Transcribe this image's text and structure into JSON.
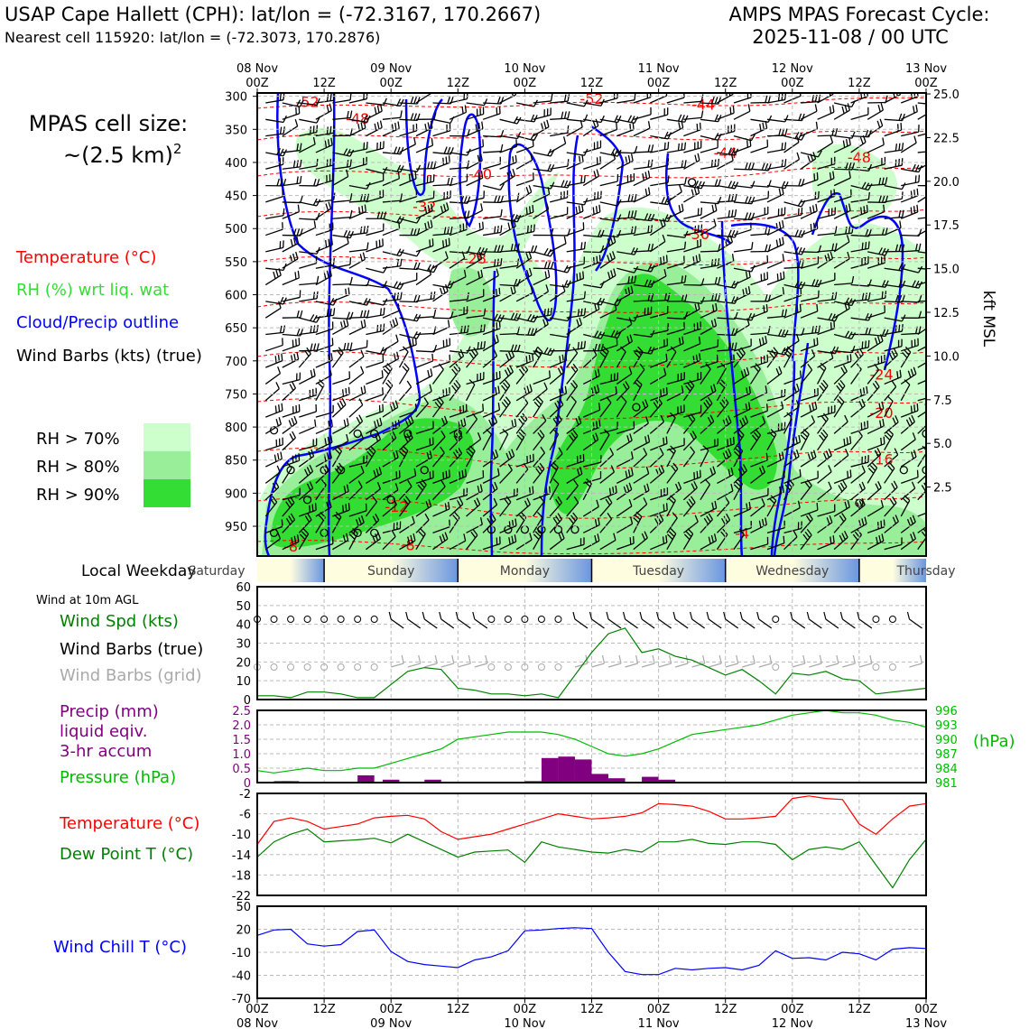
{
  "header": {
    "title_left": "USAP Cape Hallett (CPH): lat/lon = (-72.3167, 170.2667)",
    "subtitle_left": "Nearest cell 115920: lat/lon = (-72.3073, 170.2876)",
    "title_right_1": "AMPS MPAS Forecast Cycle:",
    "title_right_2": "2025-11-08 / 00 UTC"
  },
  "side_labels": {
    "cell_size_1": "MPAS cell size:",
    "cell_size_2": "~(2.5 km)",
    "cell_size_sup": "2",
    "temperature": "Temperature (°C)",
    "rh": "RH (%) wrt liq. wat",
    "cloud": "Cloud/Precip outline",
    "wind": "Wind Barbs (kts) (true)",
    "rh70": "RH > 70%",
    "rh80": "RH > 80%",
    "rh90": "RH > 90%",
    "local_weekday": "Local Weekday",
    "wind10m": "Wind at 10m AGL",
    "wind_spd": "Wind Spd (kts)",
    "barbs_true": "Wind Barbs (true)",
    "barbs_grid": "Wind Barbs (grid)",
    "precip_1": "Precip (mm)",
    "precip_2": "liquid eqiv.",
    "precip_3": "3-hr accum",
    "pressure": "Pressure (hPa)",
    "hpa_unit": "(hPa)",
    "temp2": "Temperature (°C)",
    "dewpoint": "Dew Point T (°C)",
    "windchill": "Wind Chill T (°C)",
    "kft": "kft MSL"
  },
  "colors": {
    "rh70": "#ccffcc",
    "rh80": "#99ee99",
    "rh90": "#33dd33",
    "temperature": "#ff0000",
    "rh_label": "#33dd33",
    "cloud": "#0000ff",
    "pressure": "#00bb00",
    "precip": "#800080",
    "windspd": "#008000",
    "windchill": "#0000ff",
    "dewpoint": "#008000",
    "grid_barb": "#aaaaaa"
  },
  "time_axis": {
    "top_labels": [
      {
        "l1": "08 Nov",
        "l2": "00Z"
      },
      {
        "l1": "",
        "l2": "12Z"
      },
      {
        "l1": "09 Nov",
        "l2": "00Z"
      },
      {
        "l1": "",
        "l2": "12Z"
      },
      {
        "l1": "10 Nov",
        "l2": "00Z"
      },
      {
        "l1": "",
        "l2": "12Z"
      },
      {
        "l1": "11 Nov",
        "l2": "00Z"
      },
      {
        "l1": "",
        "l2": "12Z"
      },
      {
        "l1": "12 Nov",
        "l2": "00Z"
      },
      {
        "l1": "",
        "l2": "12Z"
      },
      {
        "l1": "13 Nov",
        "l2": "00Z"
      }
    ],
    "bottom_labels": [
      {
        "l1": "00Z",
        "l2": "08 Nov"
      },
      {
        "l1": "12Z",
        "l2": ""
      },
      {
        "l1": "00Z",
        "l2": "09 Nov"
      },
      {
        "l1": "12Z",
        "l2": ""
      },
      {
        "l1": "00Z",
        "l2": "10 Nov"
      },
      {
        "l1": "12Z",
        "l2": ""
      },
      {
        "l1": "00Z",
        "l2": "11 Nov"
      },
      {
        "l1": "12Z",
        "l2": ""
      },
      {
        "l1": "00Z",
        "l2": "12 Nov"
      },
      {
        "l1": "12Z",
        "l2": ""
      },
      {
        "l1": "00Z",
        "l2": "13 Nov"
      }
    ],
    "weekdays": [
      "Saturday",
      "Sunday",
      "Monday",
      "Tuesday",
      "Wednesday",
      "Thursday"
    ]
  },
  "chart_data": [
    {
      "type": "heatmap",
      "name": "cross-section",
      "ylabel_left_ticks": [
        "300",
        "350",
        "400",
        "450",
        "500",
        "550",
        "600",
        "650",
        "700",
        "750",
        "800",
        "850",
        "900",
        "950"
      ],
      "ylabel_right_ticks": [
        "25.0",
        "22.5",
        "20.0",
        "17.5",
        "15.0",
        "12.5",
        "10.0",
        "7.5",
        "5.0",
        "2.5"
      ],
      "temperature_labels": [
        {
          "t": "-52",
          "x": 9,
          "p": 308
        },
        {
          "t": "-48",
          "x": 18,
          "p": 333
        },
        {
          "t": "-52",
          "x": 60,
          "p": 303
        },
        {
          "t": "-44",
          "x": 80,
          "p": 312
        },
        {
          "t": "-40",
          "x": 40,
          "p": 417
        },
        {
          "t": "-44",
          "x": 84,
          "p": 385
        },
        {
          "t": "-48",
          "x": 108,
          "p": 392
        },
        {
          "t": "-32",
          "x": 30,
          "p": 466
        },
        {
          "t": "-36",
          "x": 79,
          "p": 508
        },
        {
          "t": "-28",
          "x": 39,
          "p": 545
        },
        {
          "t": "-24",
          "x": 112,
          "p": 720
        },
        {
          "t": "-20",
          "x": 112,
          "p": 778
        },
        {
          "t": "-16",
          "x": 112,
          "p": 848
        },
        {
          "t": "-12",
          "x": 25,
          "p": 920
        },
        {
          "t": "-8",
          "x": 6,
          "p": 980
        },
        {
          "t": "-8",
          "x": 27,
          "p": 978
        },
        {
          "t": "-4",
          "x": 87,
          "p": 960
        }
      ]
    },
    {
      "type": "line",
      "name": "wind speed",
      "ylim": [
        0,
        60
      ],
      "yticks": [
        "0",
        "10",
        "20",
        "30",
        "40",
        "50",
        "60"
      ],
      "x": [
        0,
        3,
        6,
        9,
        12,
        15,
        18,
        21,
        24,
        27,
        30,
        33,
        36,
        39,
        42,
        45,
        48,
        51,
        54,
        57,
        60,
        63,
        66,
        69,
        72,
        75,
        78,
        81,
        84,
        87,
        90,
        93,
        96,
        99,
        102,
        105,
        108,
        111,
        114,
        117,
        120
      ],
      "values": [
        2,
        2,
        1,
        4,
        4,
        3,
        1,
        1,
        8,
        15,
        17,
        16,
        6,
        5,
        3,
        3,
        2,
        3,
        1,
        13,
        25,
        35,
        38,
        25,
        27,
        23,
        21,
        17,
        13,
        16,
        10,
        3,
        14,
        13,
        15,
        11,
        10,
        3,
        4,
        5,
        6
      ]
    },
    {
      "type": "bar",
      "name": "precipitation",
      "ylim": [
        0,
        2.5
      ],
      "yticks": [
        "0",
        "0.5",
        "1.0",
        "1.5",
        "2.0",
        "2.5"
      ],
      "x": [
        3,
        4.5,
        18,
        22.5,
        30,
        48,
        51,
        54,
        57,
        60,
        63,
        69,
        72
      ],
      "values": [
        0.05,
        0.05,
        0.25,
        0.1,
        0.1,
        0.05,
        0.85,
        0.9,
        0.8,
        0.3,
        0.15,
        0.2,
        0.1
      ]
    },
    {
      "type": "line",
      "name": "pressure",
      "ylim": [
        981,
        996
      ],
      "yticks": [
        "981",
        "984",
        "987",
        "990",
        "993",
        "996"
      ],
      "x": [
        0,
        3,
        6,
        9,
        12,
        15,
        18,
        21,
        24,
        27,
        30,
        33,
        36,
        39,
        42,
        45,
        48,
        51,
        54,
        57,
        60,
        63,
        66,
        69,
        72,
        75,
        78,
        81,
        84,
        87,
        90,
        93,
        96,
        99,
        102,
        105,
        108,
        111,
        114,
        117,
        120
      ],
      "values": [
        983.5,
        983,
        983.5,
        984,
        983.5,
        983.5,
        984,
        984,
        985,
        986,
        987,
        988,
        990,
        990.5,
        991,
        991.5,
        991.5,
        991.5,
        991,
        990,
        988.5,
        987,
        986.5,
        987,
        988,
        989.5,
        991,
        991.5,
        992,
        992.5,
        993,
        994,
        995,
        995.5,
        996,
        995.5,
        995.5,
        995,
        994,
        993.5,
        992.5
      ]
    },
    {
      "type": "line",
      "name": "temperature and dew point",
      "ylim": [
        -22,
        -2
      ],
      "yticks": [
        "-2",
        "-6",
        "-10",
        "-14",
        "-18",
        "-22"
      ],
      "x": [
        0,
        3,
        6,
        9,
        12,
        15,
        18,
        21,
        24,
        27,
        30,
        33,
        36,
        39,
        42,
        45,
        48,
        51,
        54,
        57,
        60,
        63,
        66,
        69,
        72,
        75,
        78,
        81,
        84,
        87,
        90,
        93,
        96,
        99,
        102,
        105,
        108,
        111,
        114,
        117,
        120
      ],
      "series": [
        {
          "key": "temp",
          "values": [
            -12,
            -7.5,
            -6.8,
            -7.5,
            -9,
            -8.5,
            -8,
            -6.8,
            -6.5,
            -6.3,
            -7,
            -9.5,
            -11,
            -10.5,
            -10,
            -9,
            -8,
            -7,
            -6,
            -6.5,
            -7,
            -6.8,
            -6.5,
            -5.8,
            -4,
            -4.2,
            -4.5,
            -5.5,
            -7,
            -7,
            -6.8,
            -6.5,
            -3,
            -2.5,
            -3,
            -3.2,
            -8,
            -10,
            -7,
            -4.5,
            -4
          ]
        },
        {
          "key": "dew",
          "values": [
            -14.5,
            -11.5,
            -10,
            -9,
            -11.5,
            -11.3,
            -11.1,
            -10.8,
            -11.7,
            -10,
            -11.5,
            -13,
            -14.5,
            -13.5,
            -13.3,
            -13.1,
            -15.5,
            -11.5,
            -12.5,
            -13,
            -13.5,
            -13.7,
            -13,
            -13.5,
            -11.5,
            -11.5,
            -11,
            -11.8,
            -12,
            -11.5,
            -11.5,
            -12,
            -15,
            -13,
            -12.5,
            -13,
            -11.5,
            -16,
            -20.5,
            -15,
            -11
          ]
        }
      ]
    },
    {
      "type": "line",
      "name": "wind chill",
      "ylim": [
        -70,
        50
      ],
      "yticks": [
        "50",
        "20",
        "-10",
        "-40",
        "-70"
      ],
      "x": [
        0,
        3,
        6,
        9,
        12,
        15,
        18,
        21,
        24,
        27,
        30,
        33,
        36,
        39,
        42,
        45,
        48,
        51,
        54,
        57,
        60,
        63,
        66,
        69,
        72,
        75,
        78,
        81,
        84,
        87,
        90,
        93,
        96,
        99,
        102,
        105,
        108,
        111,
        114,
        117,
        120
      ],
      "values": [
        12,
        19,
        20,
        1,
        -2,
        0,
        17,
        19,
        -9,
        -22,
        -26,
        -28,
        -30,
        -20,
        -16,
        -8,
        18,
        19,
        21,
        22,
        21,
        -10,
        -35,
        -39,
        -39,
        -31,
        -33,
        -31,
        -30,
        -33,
        -27,
        -8,
        -18,
        -17,
        -20,
        -10,
        -12,
        -20,
        -6,
        -4,
        -5
      ]
    }
  ]
}
